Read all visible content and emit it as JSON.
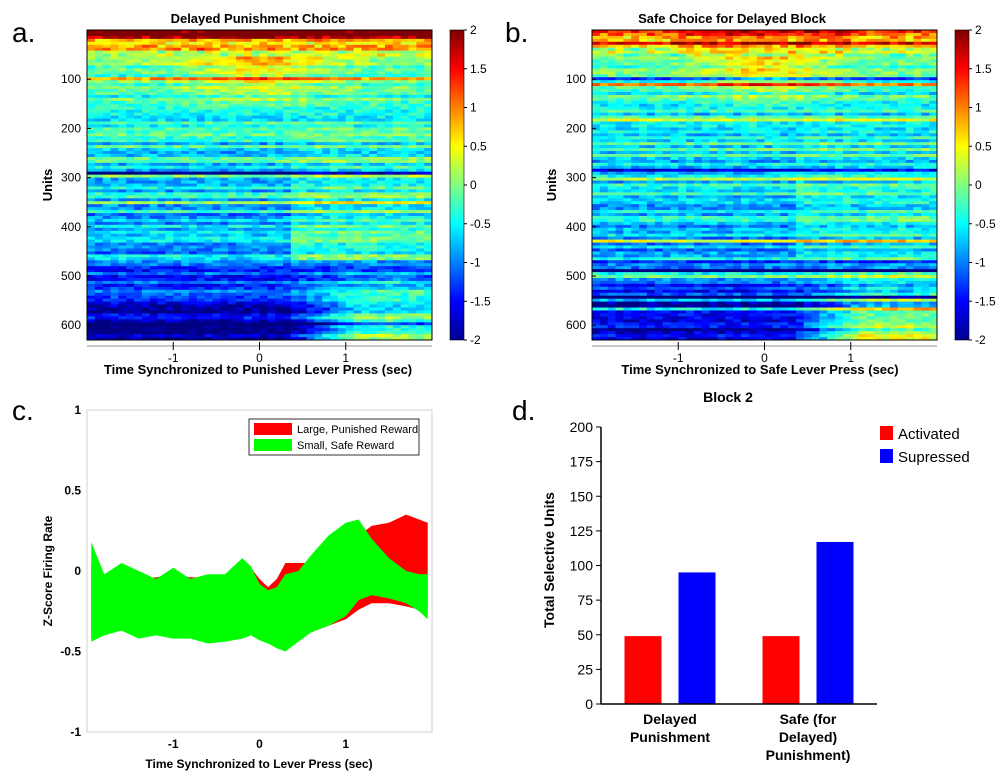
{
  "panels": {
    "a": "a.",
    "b": "b.",
    "c": "c.",
    "d": "d."
  },
  "colorbar": {
    "ticks": [
      "2",
      "1.5",
      "1",
      "0.5",
      "0",
      "-0.5",
      "-1",
      "-1.5",
      "-2"
    ],
    "stops": [
      "#7f0000",
      "#ff0000",
      "#ff8000",
      "#ffff00",
      "#80ff80",
      "#00ffff",
      "#0080ff",
      "#0000ff",
      "#00008f"
    ]
  },
  "chart_data": [
    {
      "type": "heatmap",
      "panel": "a",
      "title": "Delayed Punishment Choice",
      "xlabel": "Time Synchronized to Punished Lever Press (sec)",
      "ylabel": "Units",
      "x_ticks": [
        "-1",
        "0",
        "1"
      ],
      "y_ticks": [
        "100",
        "200",
        "300",
        "400",
        "500",
        "600"
      ],
      "xlim": [
        -2,
        2
      ],
      "ylim": [
        0,
        630
      ],
      "clim": [
        -2,
        2
      ]
    },
    {
      "type": "heatmap",
      "panel": "b",
      "title": "Safe Choice for Delayed Block",
      "xlabel": "Time Synchronized to Safe Lever Press (sec)",
      "ylabel": "Units",
      "x_ticks": [
        "-1",
        "0",
        "1"
      ],
      "y_ticks": [
        "100",
        "200",
        "300",
        "400",
        "500",
        "600"
      ],
      "xlim": [
        -2,
        2
      ],
      "ylim": [
        0,
        630
      ],
      "clim": [
        -2,
        2
      ]
    },
    {
      "type": "area",
      "panel": "c",
      "xlabel": "Time Synchronized to Lever Press (sec)",
      "ylabel": "Z-Score Firing Rate",
      "xlim": [
        -2,
        2
      ],
      "ylim": [
        -1,
        1
      ],
      "x_ticks": [
        "-1",
        "0",
        "1"
      ],
      "y_ticks": [
        "1",
        "0.5",
        "0",
        "-0.5",
        "-1"
      ],
      "legend_position": "top-right",
      "x": [
        -1.95,
        -1.8,
        -1.6,
        -1.4,
        -1.2,
        -1.0,
        -0.8,
        -0.6,
        -0.4,
        -0.2,
        -0.1,
        0.0,
        0.1,
        0.2,
        0.3,
        0.45,
        0.6,
        0.8,
        1.0,
        1.15,
        1.3,
        1.5,
        1.7,
        1.85,
        1.95
      ],
      "series": [
        {
          "name": "Large, Punished Reward",
          "color": "#ff0000",
          "upper": [
            0.05,
            -0.02,
            -0.06,
            -0.05,
            -0.04,
            -0.02,
            -0.04,
            -0.04,
            -0.05,
            0.03,
            0.02,
            -0.05,
            -0.1,
            -0.05,
            0.05,
            0.05,
            0.05,
            0.1,
            0.18,
            0.22,
            0.28,
            0.3,
            0.35,
            0.32,
            0.3
          ],
          "lower": [
            -0.42,
            -0.36,
            -0.33,
            -0.38,
            -0.36,
            -0.38,
            -0.4,
            -0.42,
            -0.4,
            -0.38,
            -0.35,
            -0.38,
            -0.42,
            -0.45,
            -0.47,
            -0.42,
            -0.38,
            -0.34,
            -0.3,
            -0.24,
            -0.2,
            -0.2,
            -0.22,
            -0.24,
            -0.25
          ]
        },
        {
          "name": "Small, Safe Reward",
          "color": "#00ff00",
          "upper": [
            0.18,
            -0.02,
            0.05,
            0.0,
            -0.05,
            0.02,
            -0.05,
            -0.02,
            -0.02,
            0.08,
            0.03,
            -0.08,
            -0.12,
            -0.1,
            -0.02,
            0.0,
            0.1,
            0.22,
            0.3,
            0.32,
            0.2,
            0.08,
            0.0,
            -0.02,
            -0.02
          ],
          "lower": [
            -0.44,
            -0.4,
            -0.37,
            -0.42,
            -0.4,
            -0.42,
            -0.42,
            -0.45,
            -0.44,
            -0.42,
            -0.4,
            -0.43,
            -0.45,
            -0.48,
            -0.5,
            -0.44,
            -0.38,
            -0.34,
            -0.28,
            -0.18,
            -0.15,
            -0.17,
            -0.2,
            -0.25,
            -0.3
          ]
        }
      ]
    },
    {
      "type": "bar",
      "panel": "d",
      "title": "Block 2",
      "ylabel": "Total Selective Units",
      "xlabel": "",
      "categories": [
        "Delayed Punishment",
        "Safe (for Delayed) Punishment)"
      ],
      "category_lines": [
        [
          "Delayed",
          "Punishment"
        ],
        [
          "Safe (for",
          "Delayed)",
          "Punishment)"
        ]
      ],
      "ylim": [
        0,
        200
      ],
      "y_ticks": [
        "200",
        "175",
        "150",
        "125",
        "100",
        "75",
        "50",
        "25",
        "0"
      ],
      "legend_position": "top-right",
      "series": [
        {
          "name": "Activated",
          "color": "#ff0000",
          "values": [
            49,
            49
          ]
        },
        {
          "name": "Supressed",
          "color": "#0000ff",
          "values": [
            95,
            117
          ]
        }
      ]
    }
  ]
}
